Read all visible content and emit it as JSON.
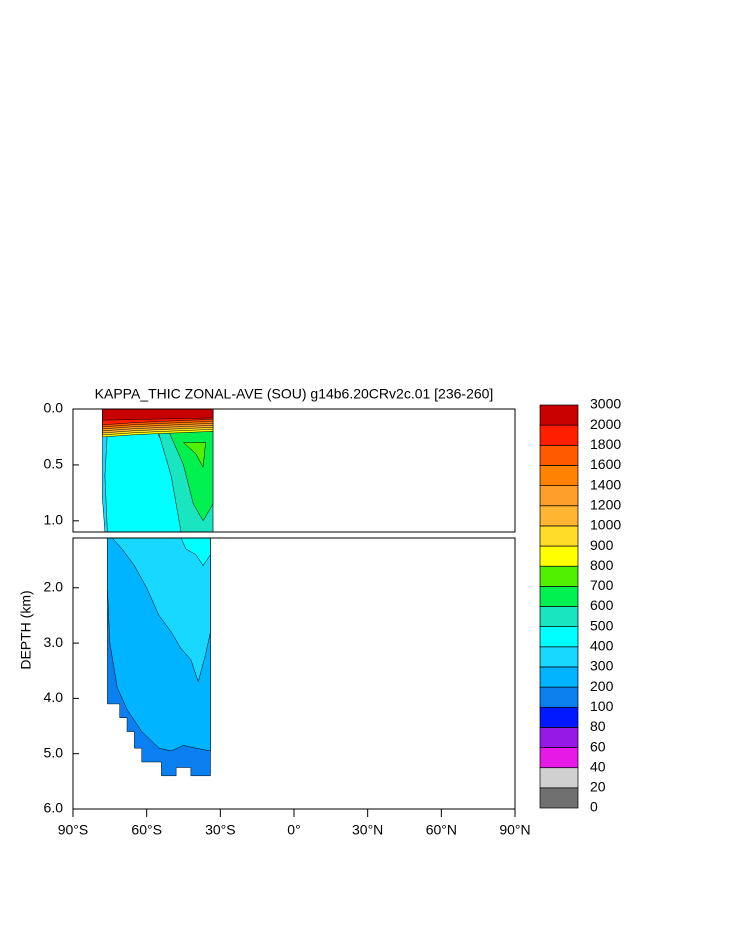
{
  "chart_data": {
    "type": "contour",
    "title": "KAPPA_THIC ZONAL-AVE (SOU) g14b6.20CRv2c.01 [236-260]",
    "ylabel": "DEPTH (km)",
    "xlim": [
      -90,
      90
    ],
    "xticks": [
      {
        "value": -90,
        "label": "90°S"
      },
      {
        "value": -60,
        "label": "60°S"
      },
      {
        "value": -30,
        "label": "30°S"
      },
      {
        "value": 0,
        "label": "0°"
      },
      {
        "value": 30,
        "label": "30°N"
      },
      {
        "value": 60,
        "label": "60°N"
      },
      {
        "value": 90,
        "label": "90°N"
      }
    ],
    "panels": [
      {
        "ylim": [
          0,
          1.1
        ],
        "yticks": [
          {
            "value": 0,
            "label": "0.0"
          },
          {
            "value": 0.5,
            "label": "0.5"
          },
          {
            "value": 1,
            "label": "1.0"
          }
        ]
      },
      {
        "ylim": [
          1.1,
          6
        ],
        "yticks": [
          {
            "value": 2,
            "label": "2.0"
          },
          {
            "value": 3,
            "label": "3.0"
          },
          {
            "value": 4,
            "label": "4.0"
          },
          {
            "value": 5,
            "label": "5.0"
          },
          {
            "value": 6,
            "label": "6.0"
          }
        ]
      }
    ],
    "colorbar": {
      "levels": [
        0,
        20,
        40,
        60,
        80,
        100,
        200,
        300,
        400,
        500,
        600,
        700,
        800,
        900,
        1000,
        1200,
        1400,
        1600,
        1800,
        2000,
        3000
      ],
      "colors": [
        "#707070",
        "#d0d0d0",
        "#e619e6",
        "#9619e6",
        "#0019ff",
        "#0a80f0",
        "#00b4ff",
        "#19d8ff",
        "#00ffff",
        "#19e6c0",
        "#00f050",
        "#50f000",
        "#ffff00",
        "#ffdc28",
        "#ffb432",
        "#ff9e28",
        "#ff8200",
        "#ff5a00",
        "#ff1e00",
        "#c80000"
      ]
    }
  }
}
